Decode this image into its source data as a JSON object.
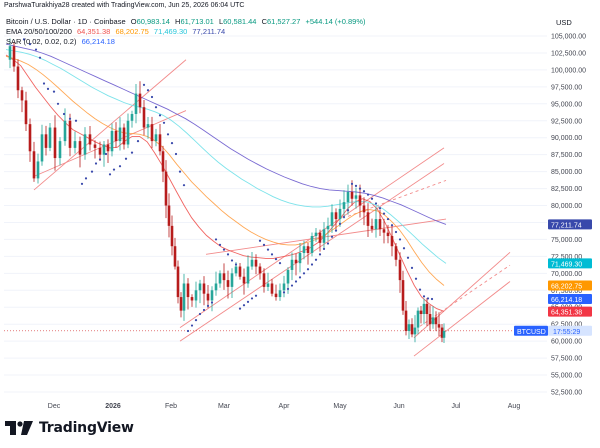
{
  "credit": "ParshwaTurakhiya28 created with TradingView.com, Jun 25, 2026 06:04 UTC",
  "legend": {
    "symbol": "Bitcoin / U.S. Dollar · 1D · Coinbase",
    "o_label": "O",
    "o": "60,983.14",
    "h_label": "H",
    "h": "61,713.01",
    "l_label": "L",
    "l": "60,581.44",
    "c_label": "C",
    "c": "61,527.27",
    "change": "+544.14 (+0.89%)",
    "ema_label": "EMA 20/50/100/200",
    "ema20": "64,351.38",
    "ema50": "68,202.75",
    "ema100": "71,469.30",
    "ema200": "77,211.74",
    "sar_label": "SAR (0.02, 0.02, 0.2)",
    "sar": "66,214.18"
  },
  "colors": {
    "up": "#26a69a",
    "down": "#ef5350",
    "candle_down": "#b71c1c",
    "ema20": "#ef5350",
    "ema50": "#ff9f43",
    "ema100": "#6ee0e8",
    "ema200": "#6a5acd",
    "sar": "#3949ab",
    "channel": "#f28b8b",
    "btc": "#2962ff",
    "text": "#131722",
    "axis": "#434651"
  },
  "chart_data": {
    "type": "candlestick",
    "currency": "USD",
    "x_ticks": [
      "Dec",
      "2026",
      "Feb",
      "Mar",
      "Apr",
      "May",
      "Jun",
      "Jul",
      "Aug"
    ],
    "y_ticks": [
      "105,000.00",
      "102,500.00",
      "100,000.00",
      "97,500.00",
      "95,000.00",
      "92,500.00",
      "90,000.00",
      "87,500.00",
      "85,000.00",
      "82,500.00",
      "80,000.00",
      "77,500.00",
      "75,000.00",
      "72,500.00",
      "70,000.00",
      "67,500.00",
      "65,000.00",
      "62,500.00",
      "60,000.00",
      "57,500.00",
      "55,000.00",
      "52,500.00"
    ],
    "ylim": [
      51000,
      106500
    ],
    "tags": [
      {
        "label": "77,211.74",
        "value": 77211.74,
        "color": "#3949ab"
      },
      {
        "label": "71,469.30",
        "value": 71469.3,
        "color": "#00bcd4"
      },
      {
        "label": "68,202.75",
        "value": 68202.75,
        "color": "#ff9800"
      },
      {
        "label": "66,214.18",
        "value": 66214.18,
        "color": "#2962ff"
      },
      {
        "label": "64,351.38",
        "value": 64351.38,
        "color": "#f23645"
      }
    ],
    "btc_tag": {
      "label": "BTCUSD",
      "time": "17:55:29",
      "value": 61527.27
    },
    "series": [
      {
        "name": "EMA 20",
        "values": [
          102200,
          101500,
          100600,
          99000,
          97400,
          96000,
          94600,
          93300,
          92200,
          91200,
          90600,
          90000,
          89400,
          88900,
          88500,
          88600,
          89500,
          90200,
          90200,
          89400,
          87800,
          86000,
          84000,
          82000,
          80000,
          78200,
          76800,
          75600,
          74700,
          73900,
          73400,
          73000,
          72600,
          72400,
          72300,
          72200,
          72200,
          72400,
          72600,
          72900,
          73300,
          73800,
          74500,
          75600,
          76800,
          78100,
          79500,
          80500,
          81000,
          80600,
          79500,
          77600,
          75300,
          72800,
          70400,
          68200,
          66500,
          65500,
          64800,
          64400
        ]
      },
      {
        "name": "EMA 50",
        "values": [
          102000,
          101700,
          101300,
          100800,
          100100,
          99300,
          98400,
          97400,
          96400,
          95400,
          94500,
          93600,
          92800,
          92100,
          91500,
          91000,
          90700,
          90600,
          90500,
          90200,
          89600,
          88700,
          87500,
          86100,
          84800,
          83500,
          82400,
          81300,
          80300,
          79300,
          78400,
          77600,
          76800,
          76100,
          75500,
          75000,
          74600,
          74300,
          74200,
          74200,
          74400,
          74700,
          75100,
          75700,
          76400,
          77200,
          78000,
          78700,
          79200,
          79400,
          79200,
          78600,
          77600,
          76400,
          74900,
          73200,
          71600,
          70200,
          69100,
          68200
        ]
      },
      {
        "name": "EMA 100",
        "values": [
          103000,
          102800,
          102600,
          102300,
          101900,
          101400,
          100800,
          100200,
          99500,
          98800,
          98100,
          97400,
          96800,
          96200,
          95700,
          95200,
          94800,
          94500,
          94200,
          93800,
          93300,
          92600,
          91700,
          90700,
          89600,
          88500,
          87400,
          86400,
          85500,
          84700,
          83900,
          83200,
          82500,
          81900,
          81300,
          80800,
          80400,
          80100,
          79900,
          79800,
          79800,
          79900,
          80100,
          80300,
          80500,
          80600,
          80500,
          80100,
          79500,
          78600,
          77600,
          76500,
          75400,
          74300,
          73300,
          72300,
          71469
        ]
      },
      {
        "name": "EMA 200",
        "values": [
          103800,
          103500,
          103200,
          102900,
          102500,
          102000,
          101400,
          100800,
          100200,
          99600,
          99000,
          98400,
          97800,
          97200,
          96600,
          96000,
          95400,
          94800,
          94200,
          93500,
          92800,
          92000,
          91100,
          90200,
          89300,
          88400,
          87600,
          86800,
          86100,
          85400,
          84800,
          84200,
          83700,
          83200,
          82800,
          82500,
          82300,
          82200,
          82100,
          82000,
          81800,
          81500,
          81100,
          80600,
          80100,
          79500,
          78900,
          78300,
          77700,
          77211
        ]
      }
    ]
  }
}
